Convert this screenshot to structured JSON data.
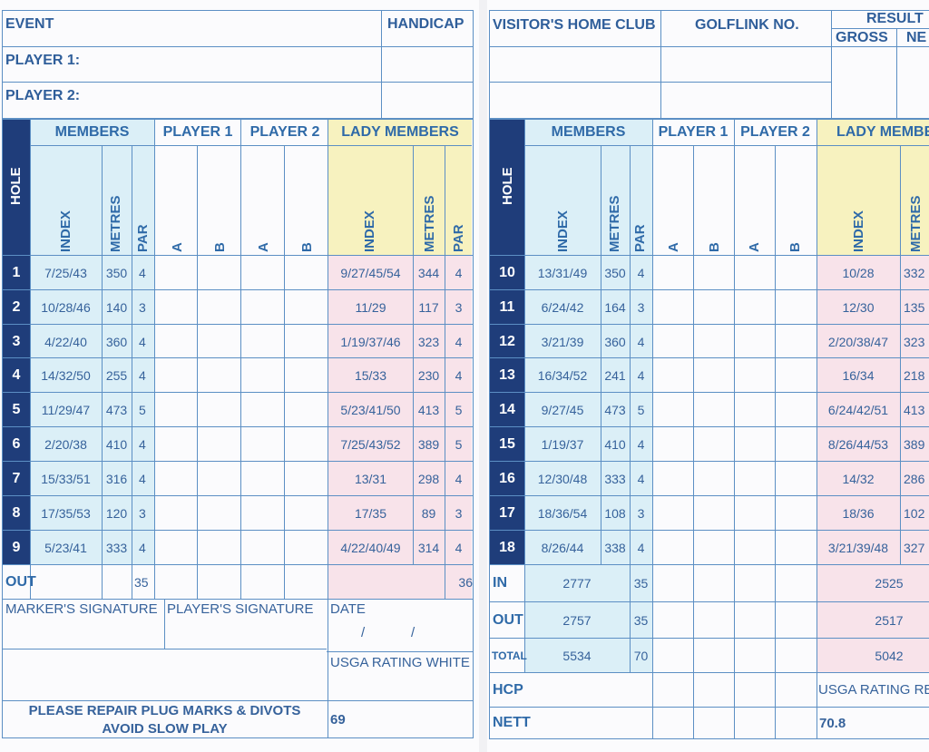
{
  "left_header": {
    "event": "EVENT",
    "handicap": "HANDICAP",
    "player1": "PLAYER 1:",
    "player2": "PLAYER 2:"
  },
  "right_header": {
    "visitor_home_club": "VISITOR'S HOME CLUB",
    "golflink_no": "GOLFLINK NO.",
    "result": "RESULT",
    "gross": "GROSS",
    "nett": "NE"
  },
  "columns": {
    "members": "MEMBERS",
    "player1": "PLAYER 1",
    "player2": "PLAYER 2",
    "lady_members": "LADY MEMBERS",
    "lady_members_right": "LADY MEMBER",
    "hole": "HOLE",
    "index": "INDEX",
    "metres": "METRES",
    "par": "PAR",
    "a": "A",
    "b": "B"
  },
  "front_nine": [
    {
      "hole": "1",
      "index": "7/25/43",
      "metres": "350",
      "par": "4",
      "lady_index": "9/27/45/54",
      "lady_metres": "344",
      "lady_par": "4"
    },
    {
      "hole": "2",
      "index": "10/28/46",
      "metres": "140",
      "par": "3",
      "lady_index": "11/29",
      "lady_metres": "117",
      "lady_par": "3"
    },
    {
      "hole": "3",
      "index": "4/22/40",
      "metres": "360",
      "par": "4",
      "lady_index": "1/19/37/46",
      "lady_metres": "323",
      "lady_par": "4"
    },
    {
      "hole": "4",
      "index": "14/32/50",
      "metres": "255",
      "par": "4",
      "lady_index": "15/33",
      "lady_metres": "230",
      "lady_par": "4"
    },
    {
      "hole": "5",
      "index": "11/29/47",
      "metres": "473",
      "par": "5",
      "lady_index": "5/23/41/50",
      "lady_metres": "413",
      "lady_par": "5"
    },
    {
      "hole": "6",
      "index": "2/20/38",
      "metres": "410",
      "par": "4",
      "lady_index": "7/25/43/52",
      "lady_metres": "389",
      "lady_par": "5"
    },
    {
      "hole": "7",
      "index": "15/33/51",
      "metres": "316",
      "par": "4",
      "lady_index": "13/31",
      "lady_metres": "298",
      "lady_par": "4"
    },
    {
      "hole": "8",
      "index": "17/35/53",
      "metres": "120",
      "par": "3",
      "lady_index": "17/35",
      "lady_metres": "89",
      "lady_par": "3"
    },
    {
      "hole": "9",
      "index": "5/23/41",
      "metres": "333",
      "par": "4",
      "lady_index": "4/22/40/49",
      "lady_metres": "314",
      "lady_par": "4"
    }
  ],
  "back_nine": [
    {
      "hole": "10",
      "index": "13/31/49",
      "metres": "350",
      "par": "4",
      "lady_index": "10/28",
      "lady_metres": "332"
    },
    {
      "hole": "11",
      "index": "6/24/42",
      "metres": "164",
      "par": "3",
      "lady_index": "12/30",
      "lady_metres": "135"
    },
    {
      "hole": "12",
      "index": "3/21/39",
      "metres": "360",
      "par": "4",
      "lady_index": "2/20/38/47",
      "lady_metres": "323"
    },
    {
      "hole": "13",
      "index": "16/34/52",
      "metres": "241",
      "par": "4",
      "lady_index": "16/34",
      "lady_metres": "218"
    },
    {
      "hole": "14",
      "index": "9/27/45",
      "metres": "473",
      "par": "5",
      "lady_index": "6/24/42/51",
      "lady_metres": "413"
    },
    {
      "hole": "15",
      "index": "1/19/37",
      "metres": "410",
      "par": "4",
      "lady_index": "8/26/44/53",
      "lady_metres": "389"
    },
    {
      "hole": "16",
      "index": "12/30/48",
      "metres": "333",
      "par": "4",
      "lady_index": "14/32",
      "lady_metres": "286"
    },
    {
      "hole": "17",
      "index": "18/36/54",
      "metres": "108",
      "par": "3",
      "lady_index": "18/36",
      "lady_metres": "102"
    },
    {
      "hole": "18",
      "index": "8/26/44",
      "metres": "338",
      "par": "4",
      "lady_index": "3/21/39/48",
      "lady_metres": "327"
    }
  ],
  "left_footer": {
    "out_label": "OUT",
    "out_par": "35",
    "out_lady_par": "36",
    "marker_signature": "MARKER'S SIGNATURE",
    "player_signature": "PLAYER'S SIGNATURE",
    "date": "DATE",
    "date_sep1": "/",
    "date_sep2": "/",
    "usga_rating_white": "USGA RATING WHITE",
    "notice_line1": "PLEASE REPAIR PLUG MARKS & DIVOTS",
    "notice_line2": "AVOID SLOW PLAY",
    "usga_white_value": "69"
  },
  "right_footer": {
    "in_label": "IN",
    "in_metres": "2777",
    "in_par": "35",
    "in_lady": "2525",
    "out_label": "OUT",
    "out_metres": "2757",
    "out_par": "35",
    "out_lady": "2517",
    "total_label": "TOTAL",
    "total_metres": "5534",
    "total_par": "70",
    "total_lady": "5042",
    "hcp_label": "HCP",
    "usga_rating_red": "USGA RATING RED",
    "nett_label": "NETT",
    "usga_red_value": "70.8"
  },
  "colors": {
    "line": "#5c8fc4",
    "text": "#2f5e9a",
    "navy": "#1f3d7a",
    "members_bg": "#dbeff7",
    "lady_header_bg": "#f7f2bf",
    "lady_rows_bg": "#f8e3ea"
  }
}
